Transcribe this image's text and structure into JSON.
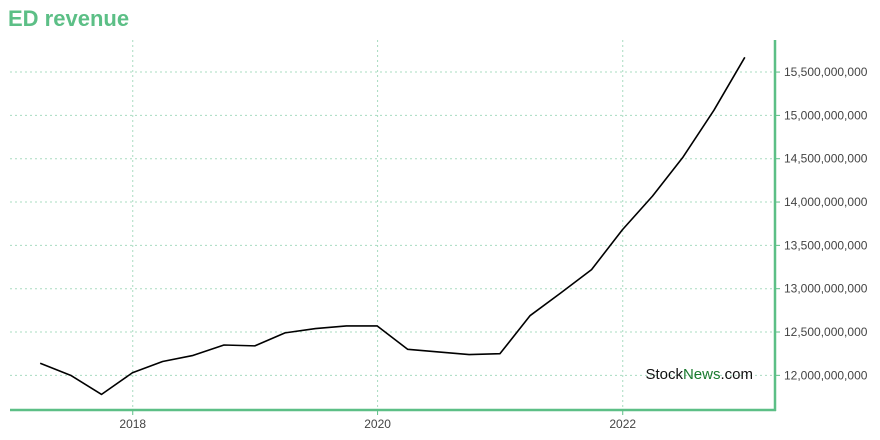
{
  "chart_data": {
    "type": "line",
    "title": "ED revenue",
    "xlabel": "",
    "ylabel": "",
    "x": [
      "2017-03-31",
      "2017-06-30",
      "2017-09-30",
      "2017-12-31",
      "2018-03-31",
      "2018-06-30",
      "2018-09-30",
      "2018-12-31",
      "2019-03-31",
      "2019-06-30",
      "2019-09-30",
      "2019-12-31",
      "2020-03-31",
      "2020-06-30",
      "2020-09-30",
      "2020-12-31",
      "2021-03-31",
      "2021-06-30",
      "2021-09-30",
      "2021-12-31",
      "2022-03-31",
      "2022-06-30",
      "2022-09-30",
      "2022-12-31"
    ],
    "series": [
      {
        "values": [
          12140000000,
          12000000000,
          11780000000,
          12030000000,
          12160000000,
          12230000000,
          12350000000,
          12340000000,
          12490000000,
          12540000000,
          12570000000,
          12570000000,
          12300000000,
          12270000000,
          12240000000,
          12250000000,
          12690000000,
          12950000000,
          13220000000,
          13680000000,
          14070000000,
          14520000000,
          15060000000,
          15670000000
        ]
      }
    ],
    "x_ticks": [
      "2018",
      "2020",
      "2022"
    ],
    "y_ticks": [
      "12,000,000,000",
      "12,500,000,000",
      "13,000,000,000",
      "13,500,000,000",
      "14,000,000,000",
      "14,500,000,000",
      "15,000,000,000",
      "15,500,000,000"
    ],
    "y_tick_values": [
      12000000000,
      12500000000,
      13000000000,
      13500000000,
      14000000000,
      14500000000,
      15000000000,
      15500000000
    ],
    "ylim": [
      11600000000,
      15870000000
    ],
    "xlim": [
      "2016-12-31",
      "2023-03-31"
    ],
    "y_axis_position": "right",
    "grid": true,
    "colors": {
      "title": "#5cbf86",
      "axis": "#5cbf86",
      "grid": "#a8dcc0",
      "line": "#000000"
    }
  },
  "watermark": {
    "part1": "Stock",
    "part2": "News",
    "part3": ".com"
  }
}
